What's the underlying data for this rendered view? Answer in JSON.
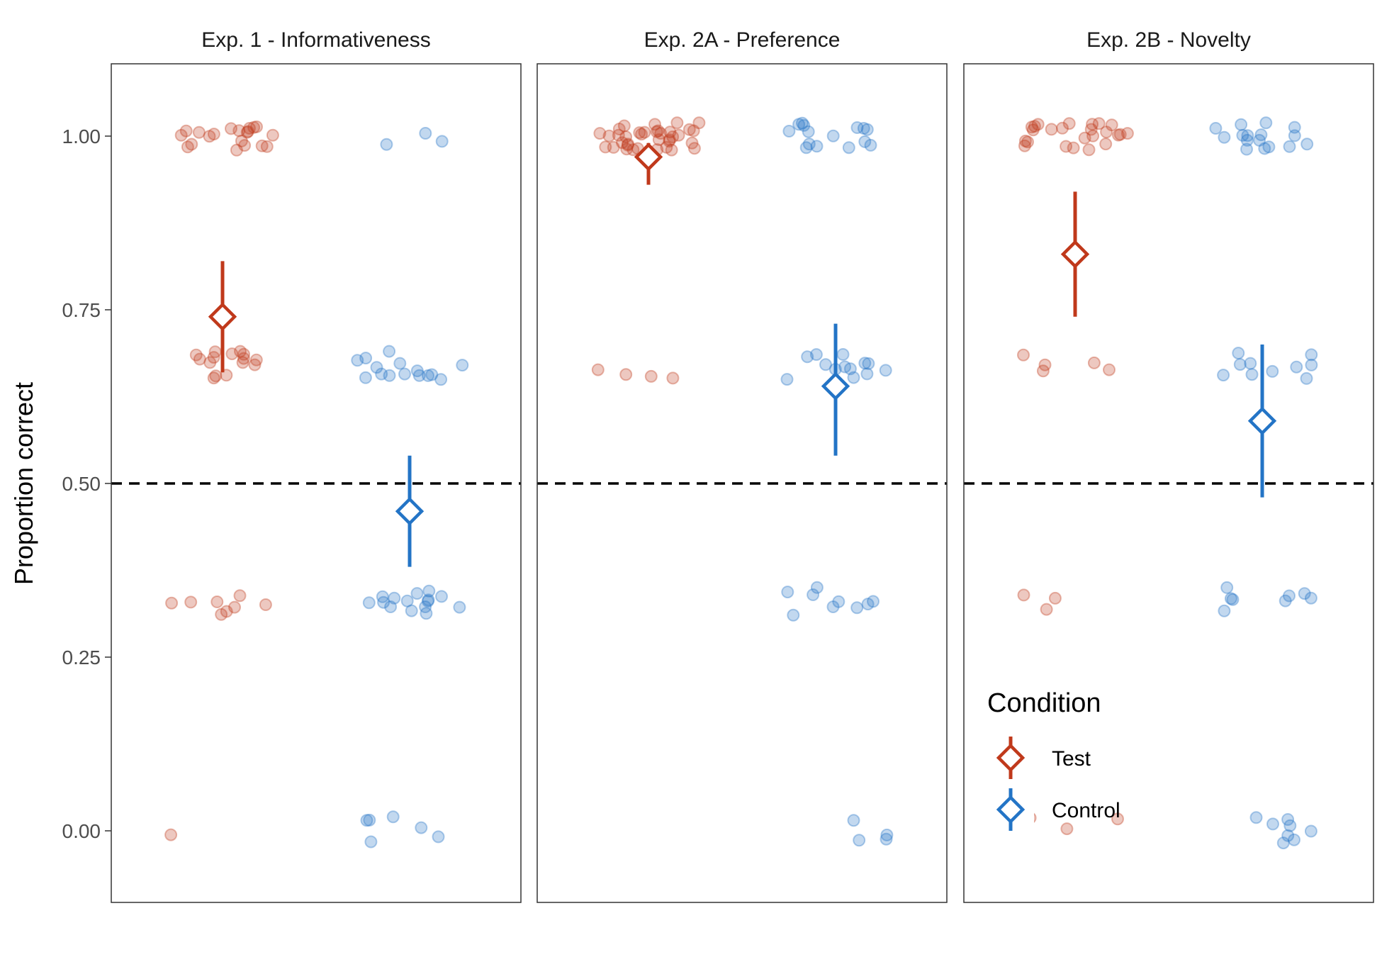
{
  "chart_data": {
    "type": "scatter",
    "ylabel": "Proportion correct",
    "ylim": [
      -0.1,
      1.1
    ],
    "yticks": [
      "0.00",
      "0.25",
      "0.50",
      "0.75",
      "1.00"
    ],
    "ytick_values": [
      0,
      0.25,
      0.5,
      0.75,
      1.0
    ],
    "reference_line": 0.5,
    "grid": false,
    "legend": {
      "title": "Condition",
      "placement": "inside-bottom-left of third panel",
      "entries": [
        {
          "label": "Test",
          "color": "#C0391B"
        },
        {
          "label": "Control",
          "color": "#2374C6"
        }
      ]
    },
    "conditions": [
      "Test",
      "Control"
    ],
    "colors": {
      "Test": "#C0391B",
      "Control": "#2374C6"
    },
    "panels": [
      {
        "title": "Exp. 1 - Informativeness",
        "summary": {
          "Test": {
            "mean": 0.74,
            "lower": 0.66,
            "upper": 0.82
          },
          "Control": {
            "mean": 0.46,
            "lower": 0.38,
            "upper": 0.54
          }
        },
        "points": {
          "Test": {
            "1.00": 20,
            "0.67": 15,
            "0.33": 8,
            "0.00": 1
          },
          "Control": {
            "1.00": 3,
            "0.67": 15,
            "0.33": 15,
            "0.00": 6
          }
        }
      },
      {
        "title": "Exp. 2A - Preference",
        "summary": {
          "Test": {
            "mean": 0.97,
            "lower": 0.93,
            "upper": 0.99
          },
          "Control": {
            "mean": 0.64,
            "lower": 0.54,
            "upper": 0.73
          }
        },
        "points": {
          "Test": {
            "1.00": 36,
            "0.67": 4,
            "0.33": 0,
            "0.00": 0
          },
          "Control": {
            "1.00": 15,
            "0.67": 13,
            "0.33": 9,
            "0.00": 4
          }
        }
      },
      {
        "title": "Exp. 2B - Novelty",
        "summary": {
          "Test": {
            "mean": 0.83,
            "lower": 0.74,
            "upper": 0.92
          },
          "Control": {
            "mean": 0.59,
            "lower": 0.48,
            "upper": 0.7
          }
        },
        "points": {
          "Test": {
            "1.00": 24,
            "0.67": 5,
            "0.33": 3,
            "0.00": 3
          },
          "Control": {
            "1.00": 16,
            "0.67": 10,
            "0.33": 8,
            "0.00": 8
          }
        }
      }
    ]
  }
}
